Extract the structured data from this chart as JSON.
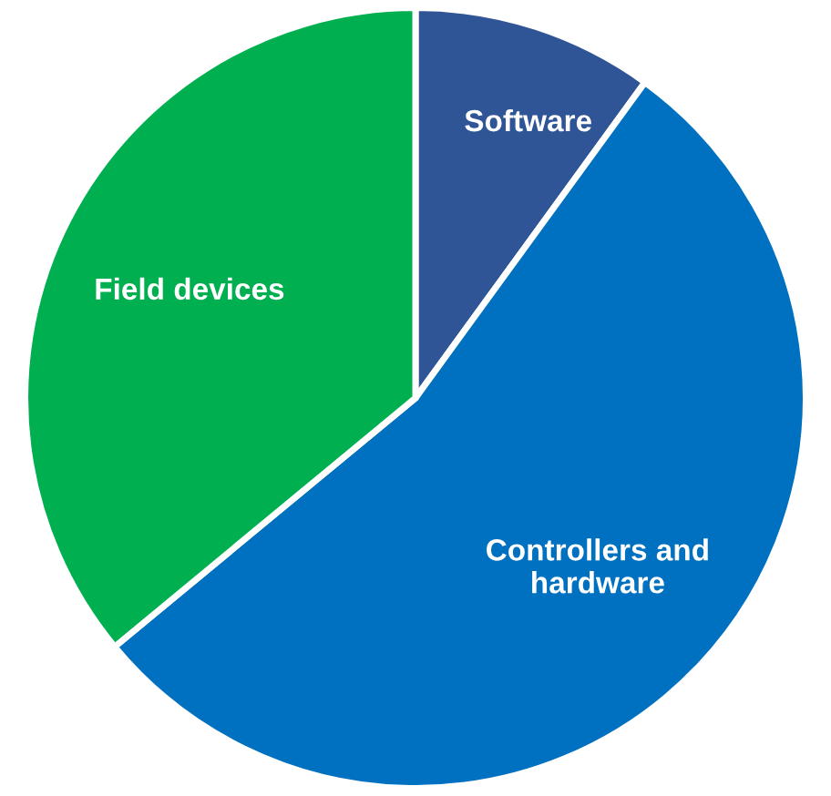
{
  "chart_data": {
    "type": "pie",
    "categories": [
      "Software",
      "Controllers and hardware",
      "Field devices"
    ],
    "values": [
      10,
      54,
      36
    ],
    "colors": [
      "#2f5597",
      "#0070c0",
      "#00b050"
    ],
    "legend": false
  }
}
